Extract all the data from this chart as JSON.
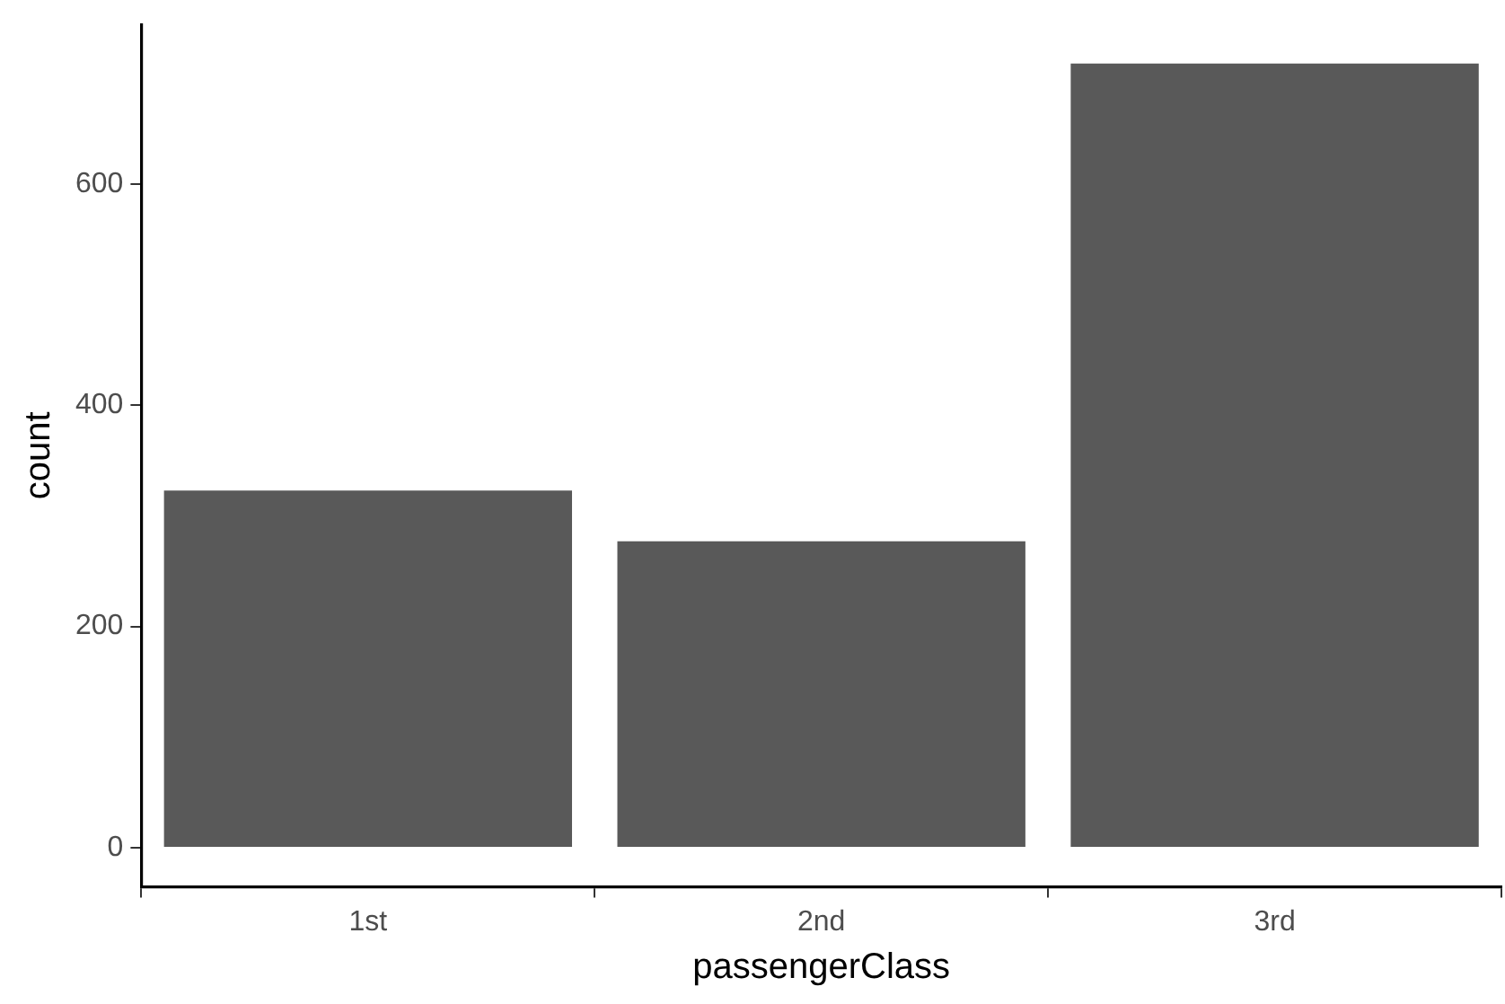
{
  "chart_data": {
    "type": "bar",
    "xlabel": "passengerClass",
    "ylabel": "count",
    "categories": [
      "1st",
      "2nd",
      "3rd"
    ],
    "values": [
      323,
      277,
      709
    ],
    "color": "#595959",
    "ylim": [
      -35.45,
      744.45
    ],
    "yticks": [
      0,
      200,
      400,
      600
    ],
    "grid": false,
    "legend": false
  }
}
